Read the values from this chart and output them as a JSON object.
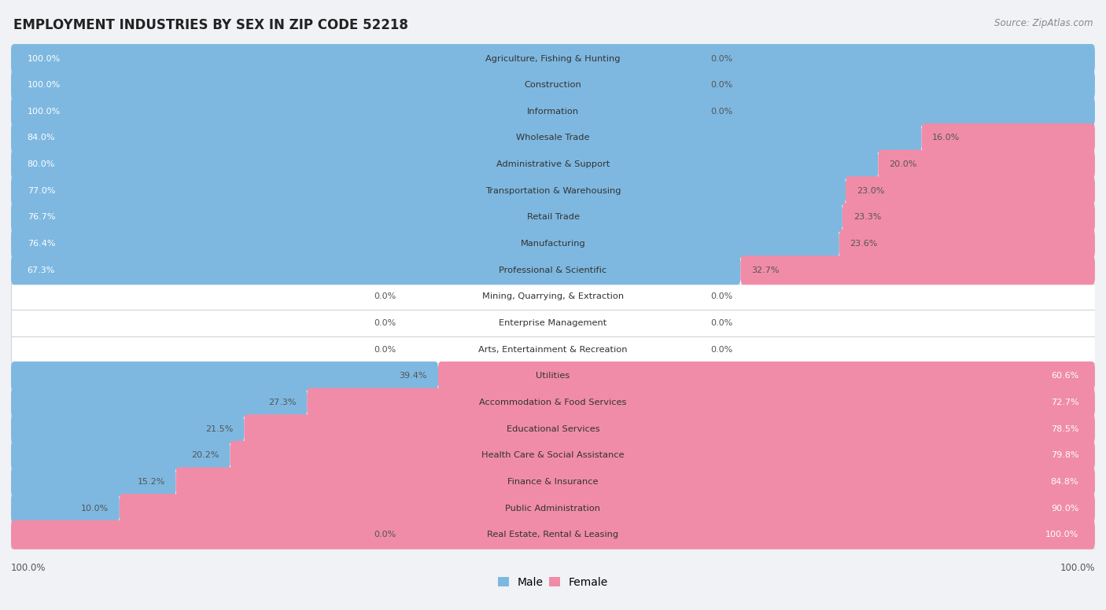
{
  "title": "EMPLOYMENT INDUSTRIES BY SEX IN ZIP CODE 52218",
  "source": "Source: ZipAtlas.com",
  "male_color": "#7eb8e0",
  "female_color": "#f08ca8",
  "row_color_odd": "#f0f2f5",
  "row_color_even": "#ffffff",
  "separator_color": "#d0d4da",
  "background_color": "#f0f2f5",
  "categories": [
    "Agriculture, Fishing & Hunting",
    "Construction",
    "Information",
    "Wholesale Trade",
    "Administrative & Support",
    "Transportation & Warehousing",
    "Retail Trade",
    "Manufacturing",
    "Professional & Scientific",
    "Mining, Quarrying, & Extraction",
    "Enterprise Management",
    "Arts, Entertainment & Recreation",
    "Utilities",
    "Accommodation & Food Services",
    "Educational Services",
    "Health Care & Social Assistance",
    "Finance & Insurance",
    "Public Administration",
    "Real Estate, Rental & Leasing"
  ],
  "male_pct": [
    100.0,
    100.0,
    100.0,
    84.0,
    80.0,
    77.0,
    76.7,
    76.4,
    67.3,
    0.0,
    0.0,
    0.0,
    39.4,
    27.3,
    21.5,
    20.2,
    15.2,
    10.0,
    0.0
  ],
  "female_pct": [
    0.0,
    0.0,
    0.0,
    16.0,
    20.0,
    23.0,
    23.3,
    23.6,
    32.7,
    0.0,
    0.0,
    0.0,
    60.6,
    72.7,
    78.5,
    79.8,
    84.8,
    90.0,
    100.0
  ],
  "figsize": [
    14.06,
    7.76
  ],
  "dpi": 100
}
